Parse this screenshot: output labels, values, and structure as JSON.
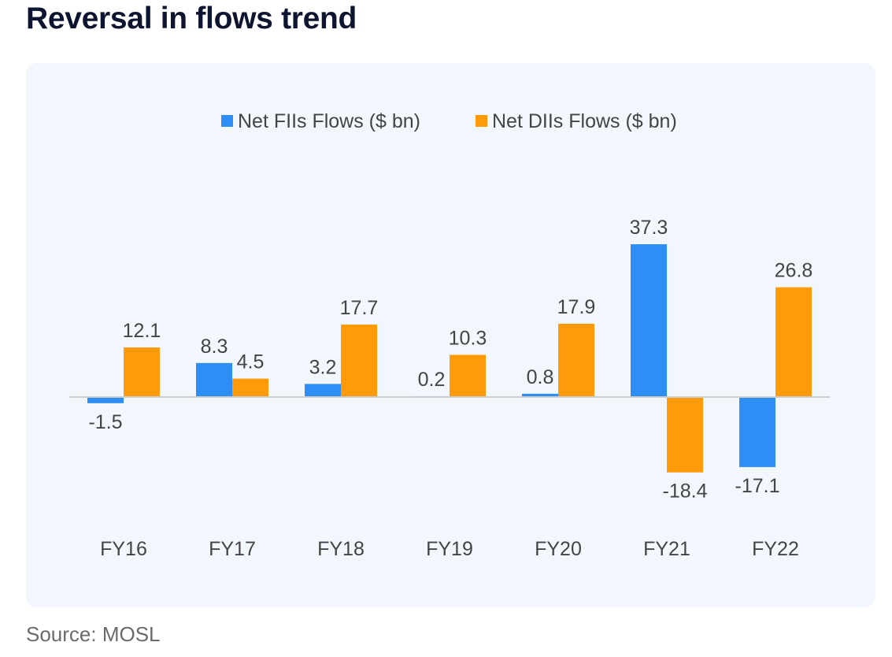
{
  "page": {
    "title": "Reversal in flows trend",
    "source": "Source: MOSL"
  },
  "chart_data": {
    "type": "bar",
    "title": "Reversal in flows trend",
    "categories": [
      "FY16",
      "FY17",
      "FY18",
      "FY19",
      "FY20",
      "FY21",
      "FY22"
    ],
    "series": [
      {
        "name": "Net FIIs Flows ($ bn)",
        "color": "#2f8ef5",
        "values": [
          -1.5,
          8.3,
          3.2,
          0.2,
          0.8,
          37.3,
          -17.1
        ]
      },
      {
        "name": "Net DIIs Flows ($ bn)",
        "color": "#ff9b0b",
        "values": [
          12.1,
          4.5,
          17.7,
          10.3,
          17.9,
          -18.4,
          26.8
        ]
      }
    ],
    "xlabel": "",
    "ylabel": "",
    "ylim": [
      -20,
      40
    ],
    "grid": false,
    "legend_position": "top-center",
    "data_labels": true,
    "zero_line_color": "#cccccc",
    "text_color": "#444444"
  }
}
